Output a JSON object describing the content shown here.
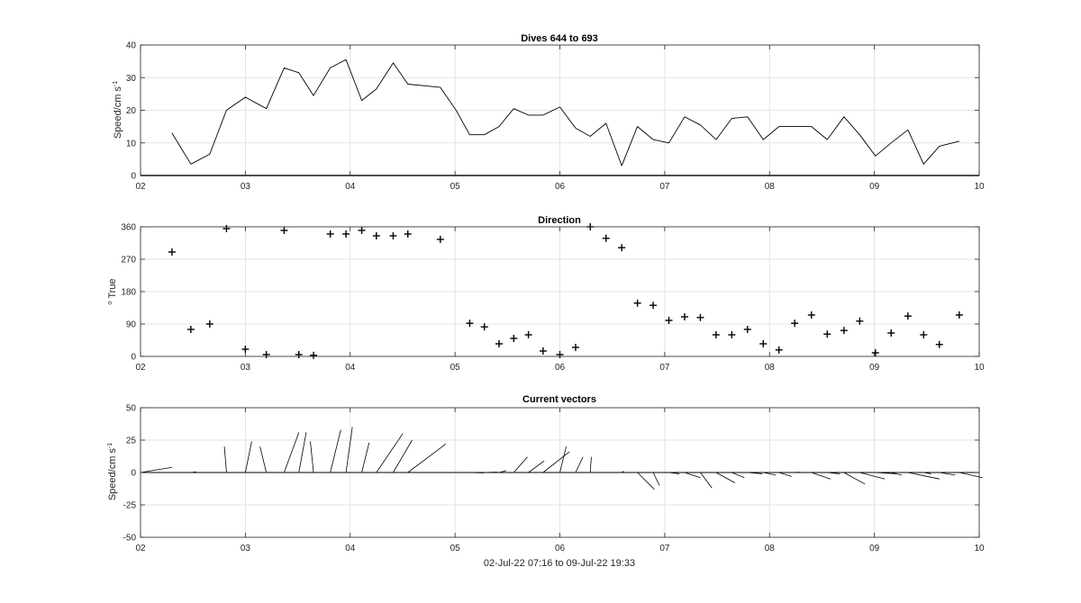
{
  "figure": {
    "xlabel": "02-Jul-22 07:16 to 09-Jul-22 19:33"
  },
  "chart_data": [
    {
      "type": "line",
      "title": "Dives 644 to 693",
      "ylabel": "Speed/cm s",
      "ylabel_sup": "-1",
      "xlim": [
        2,
        10
      ],
      "ylim": [
        0,
        40
      ],
      "xticks": [
        "02",
        "03",
        "04",
        "05",
        "06",
        "07",
        "08",
        "09",
        "10"
      ],
      "yticks": [
        "0",
        "10",
        "20",
        "30",
        "40"
      ],
      "grid": true,
      "x": [
        2.3,
        2.48,
        2.66,
        2.82,
        3.0,
        3.2,
        3.37,
        3.51,
        3.65,
        3.81,
        3.96,
        4.11,
        4.25,
        4.41,
        4.55,
        4.71,
        4.86,
        5.01,
        5.14,
        5.28,
        5.42,
        5.56,
        5.7,
        5.84,
        6.0,
        6.15,
        6.29,
        6.44,
        6.59,
        6.74,
        6.89,
        7.04,
        7.19,
        7.34,
        7.49,
        7.64,
        7.79,
        7.94,
        8.09,
        8.24,
        8.4,
        8.55,
        8.71,
        8.86,
        9.01,
        9.16,
        9.32,
        9.47,
        9.62,
        9.81
      ],
      "y": [
        13,
        3.5,
        6.5,
        20,
        24,
        20.5,
        33,
        31.5,
        24.5,
        33,
        35.5,
        23,
        26.5,
        34.5,
        28,
        27.5,
        27,
        20,
        12.5,
        12.5,
        15,
        20.5,
        18.5,
        18.5,
        21,
        14.5,
        12,
        16,
        3,
        15,
        11,
        10,
        18,
        15.5,
        11,
        17.5,
        18,
        11,
        15,
        15,
        15,
        11,
        18,
        12.5,
        6,
        10,
        14,
        3.5,
        9,
        10.5
      ]
    },
    {
      "type": "scatter",
      "title": "Direction",
      "ylabel": "True",
      "ylabel_sup": "o",
      "xlim": [
        2,
        10
      ],
      "ylim": [
        0,
        360
      ],
      "xticks": [
        "02",
        "03",
        "04",
        "05",
        "06",
        "07",
        "08",
        "09",
        "10"
      ],
      "yticks": [
        "0",
        "90",
        "180",
        "270",
        "360"
      ],
      "grid": true,
      "marker": "+",
      "x": [
        2.3,
        2.48,
        2.66,
        2.82,
        3.0,
        3.2,
        3.37,
        3.51,
        3.65,
        3.81,
        3.96,
        4.11,
        4.25,
        4.41,
        4.55,
        4.86,
        5.14,
        5.28,
        5.42,
        5.56,
        5.7,
        5.84,
        6.0,
        6.15,
        6.29,
        6.44,
        6.59,
        6.74,
        6.89,
        7.04,
        7.19,
        7.34,
        7.49,
        7.64,
        7.79,
        7.94,
        8.09,
        8.24,
        8.4,
        8.55,
        8.71,
        8.86,
        9.01,
        9.16,
        9.32,
        9.47,
        9.62,
        9.81
      ],
      "y": [
        290,
        75,
        90,
        355,
        20,
        5,
        350,
        5,
        3,
        340,
        340,
        350,
        335,
        335,
        340,
        325,
        92,
        82,
        35,
        50,
        60,
        15,
        5,
        25,
        360,
        328,
        302,
        148,
        142,
        100,
        110,
        108,
        60,
        60,
        75,
        35,
        18,
        92,
        115,
        62,
        72,
        98,
        10,
        65,
        112,
        60,
        33,
        115
      ]
    },
    {
      "type": "line",
      "title": "Current vectors",
      "ylabel": "Speed/cm s",
      "ylabel_sup": "-1",
      "xlim": [
        2,
        10
      ],
      "ylim": [
        -50,
        50
      ],
      "xticks": [
        "02",
        "03",
        "04",
        "05",
        "06",
        "07",
        "08",
        "09",
        "10"
      ],
      "yticks": [
        "-50",
        "-25",
        "0",
        "25",
        "50"
      ],
      "grid": true,
      "vectors": [
        {
          "t": 2.0,
          "u": 0.3,
          "v": 4
        },
        {
          "t": 2.48,
          "u": 0.05,
          "v": 0.5
        },
        {
          "t": 2.82,
          "u": -0.02,
          "v": 20
        },
        {
          "t": 3.0,
          "u": 0.06,
          "v": 24
        },
        {
          "t": 3.2,
          "u": -0.06,
          "v": 20
        },
        {
          "t": 3.37,
          "u": 0.14,
          "v": 31
        },
        {
          "t": 3.51,
          "u": 0.07,
          "v": 31
        },
        {
          "t": 3.65,
          "u": -0.03,
          "v": 24
        },
        {
          "t": 3.81,
          "u": 0.1,
          "v": 33
        },
        {
          "t": 3.96,
          "u": 0.06,
          "v": 35
        },
        {
          "t": 4.11,
          "u": 0.07,
          "v": 23
        },
        {
          "t": 4.25,
          "u": 0.25,
          "v": 30
        },
        {
          "t": 4.41,
          "u": 0.18,
          "v": 25
        },
        {
          "t": 4.55,
          "u": 0.36,
          "v": 22
        },
        {
          "t": 5.14,
          "u": 0.13,
          "v": -0.3
        },
        {
          "t": 5.28,
          "u": 0.12,
          "v": 0.3
        },
        {
          "t": 5.42,
          "u": 0.07,
          "v": 1.5
        },
        {
          "t": 5.56,
          "u": 0.13,
          "v": 12
        },
        {
          "t": 5.7,
          "u": 0.15,
          "v": 9
        },
        {
          "t": 5.84,
          "u": 0.25,
          "v": 16
        },
        {
          "t": 6.0,
          "u": 0.06,
          "v": 20
        },
        {
          "t": 6.15,
          "u": 0.07,
          "v": 12
        },
        {
          "t": 6.29,
          "u": 0.01,
          "v": 12
        },
        {
          "t": 6.59,
          "u": 0.02,
          "v": 1
        },
        {
          "t": 6.74,
          "u": 0.16,
          "v": -13
        },
        {
          "t": 6.89,
          "u": 0.06,
          "v": -10
        },
        {
          "t": 7.04,
          "u": 0.1,
          "v": -1
        },
        {
          "t": 7.19,
          "u": 0.15,
          "v": -4
        },
        {
          "t": 7.34,
          "u": 0.11,
          "v": -12
        },
        {
          "t": 7.49,
          "u": 0.18,
          "v": -8
        },
        {
          "t": 7.64,
          "u": 0.12,
          "v": -4
        },
        {
          "t": 7.79,
          "u": 0.14,
          "v": -1
        },
        {
          "t": 7.94,
          "u": 0.12,
          "v": -2
        },
        {
          "t": 8.09,
          "u": 0.12,
          "v": -3
        },
        {
          "t": 8.24,
          "u": 0.04,
          "v": 0.3
        },
        {
          "t": 8.4,
          "u": 0.18,
          "v": -5
        },
        {
          "t": 8.55,
          "u": 0.12,
          "v": -1
        },
        {
          "t": 8.71,
          "u": 0.2,
          "v": -9
        },
        {
          "t": 8.86,
          "u": 0.24,
          "v": -5
        },
        {
          "t": 9.01,
          "u": 0.2,
          "v": -1
        },
        {
          "t": 9.16,
          "u": 0.1,
          "v": -2
        },
        {
          "t": 9.32,
          "u": 0.3,
          "v": -5
        },
        {
          "t": 9.47,
          "u": 0.07,
          "v": -1
        },
        {
          "t": 9.62,
          "u": 0.15,
          "v": -2
        },
        {
          "t": 9.81,
          "u": 0.22,
          "v": -4
        }
      ]
    }
  ]
}
